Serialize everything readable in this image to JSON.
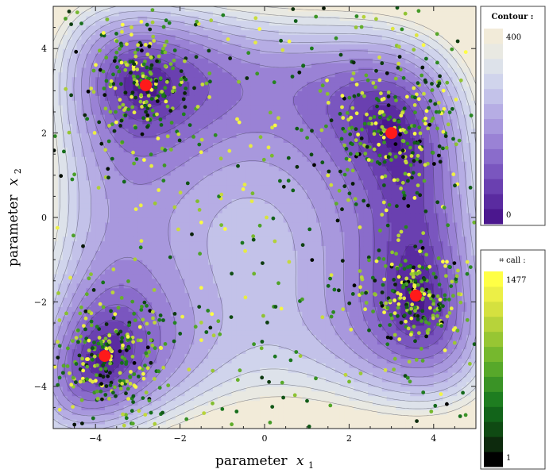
{
  "chart_data": {
    "type": "scatter",
    "background": "contour",
    "function": "himmelblau",
    "xlabel_text": "parameter",
    "xlabel_var": "x",
    "xlabel_sub": "1",
    "ylabel_text": "parameter",
    "ylabel_var": "x",
    "ylabel_sub": "2",
    "xlim": [
      -5,
      5
    ],
    "ylim": [
      -5,
      5
    ],
    "x_ticks": [
      -4,
      -2,
      0,
      2,
      4
    ],
    "y_ticks": [
      -4,
      -2,
      0,
      2,
      4
    ],
    "x_tick_labels": [
      "−4",
      "−2",
      "0",
      "2",
      "4"
    ],
    "y_tick_labels": [
      "−4",
      "−2",
      "0",
      "2",
      "4"
    ],
    "minima": [
      {
        "x": -2.81,
        "y": 3.13
      },
      {
        "x": 3.0,
        "y": 2.0
      },
      {
        "x": 3.58,
        "y": -1.85
      },
      {
        "x": -3.78,
        "y": -3.28
      }
    ],
    "minima_color": "#ff1a1a",
    "contour_legend": {
      "title": "Contour :",
      "min_label": "0",
      "max_label": "400",
      "colors": [
        "#4b178e",
        "#5a2ba0",
        "#6a40b0",
        "#7a56bf",
        "#8a6ccb",
        "#9a82d5",
        "#a898dd",
        "#b6ade4",
        "#c3c2e9",
        "#d0d4ec",
        "#dde2ea",
        "#e9e9e2",
        "#f2ebd9"
      ]
    },
    "call_legend": {
      "title": "⌗ call :",
      "min_label": "1",
      "max_label": "1477",
      "colors": [
        "#000000",
        "#0d2a0d",
        "#0f4a13",
        "#12641a",
        "#1e7d20",
        "#3a9326",
        "#57a82a",
        "#76b82e",
        "#97c633",
        "#b7d33a",
        "#d5e13f",
        "#ecef46",
        "#ffff45"
      ]
    },
    "scatter": {
      "description": "sample evaluation points concentrated near the four minima, colored by call index",
      "point_count": 1477,
      "clusters": [
        {
          "x": -2.81,
          "y": 3.13,
          "spread": 0.65
        },
        {
          "x": 3.0,
          "y": 2.0,
          "spread": 0.75
        },
        {
          "x": 3.58,
          "y": -1.85,
          "spread": 0.55
        },
        {
          "x": -3.78,
          "y": -3.28,
          "spread": 0.7
        }
      ]
    }
  }
}
